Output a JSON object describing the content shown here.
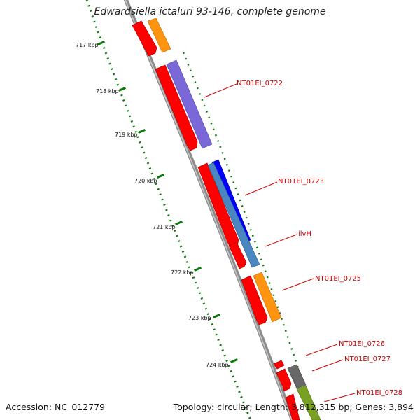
{
  "title": "Edwardsiella ictaluri 93-146, complete genome",
  "accession_text": "Accession: NC_012779",
  "topology_text": "Topology: circular; Length: 3,812,315 bp; Genes: 3,894",
  "ticks": [
    "717 kbp",
    "718 kbp",
    "719 kbp",
    "720 kbp",
    "721 kbp",
    "722 kbp",
    "723 kbp",
    "724 kbp"
  ],
  "gene_labels": [
    "NT01EI_0722",
    "NT01EI_0723",
    "ilvH",
    "NT01EI_0725",
    "NT01EI_0726",
    "NT01EI_0727",
    "NT01EI_0728"
  ],
  "colors": {
    "cds": "#ff0000",
    "backbone": "#8c8c8c",
    "tick": "#0b7a0b",
    "label": "#cc0000",
    "orange": "#ff9410",
    "purple": "#7b68d8",
    "blue": "#0000ff",
    "steelblue": "#4a86c0",
    "gray": "#686868",
    "olive": "#78a022"
  }
}
